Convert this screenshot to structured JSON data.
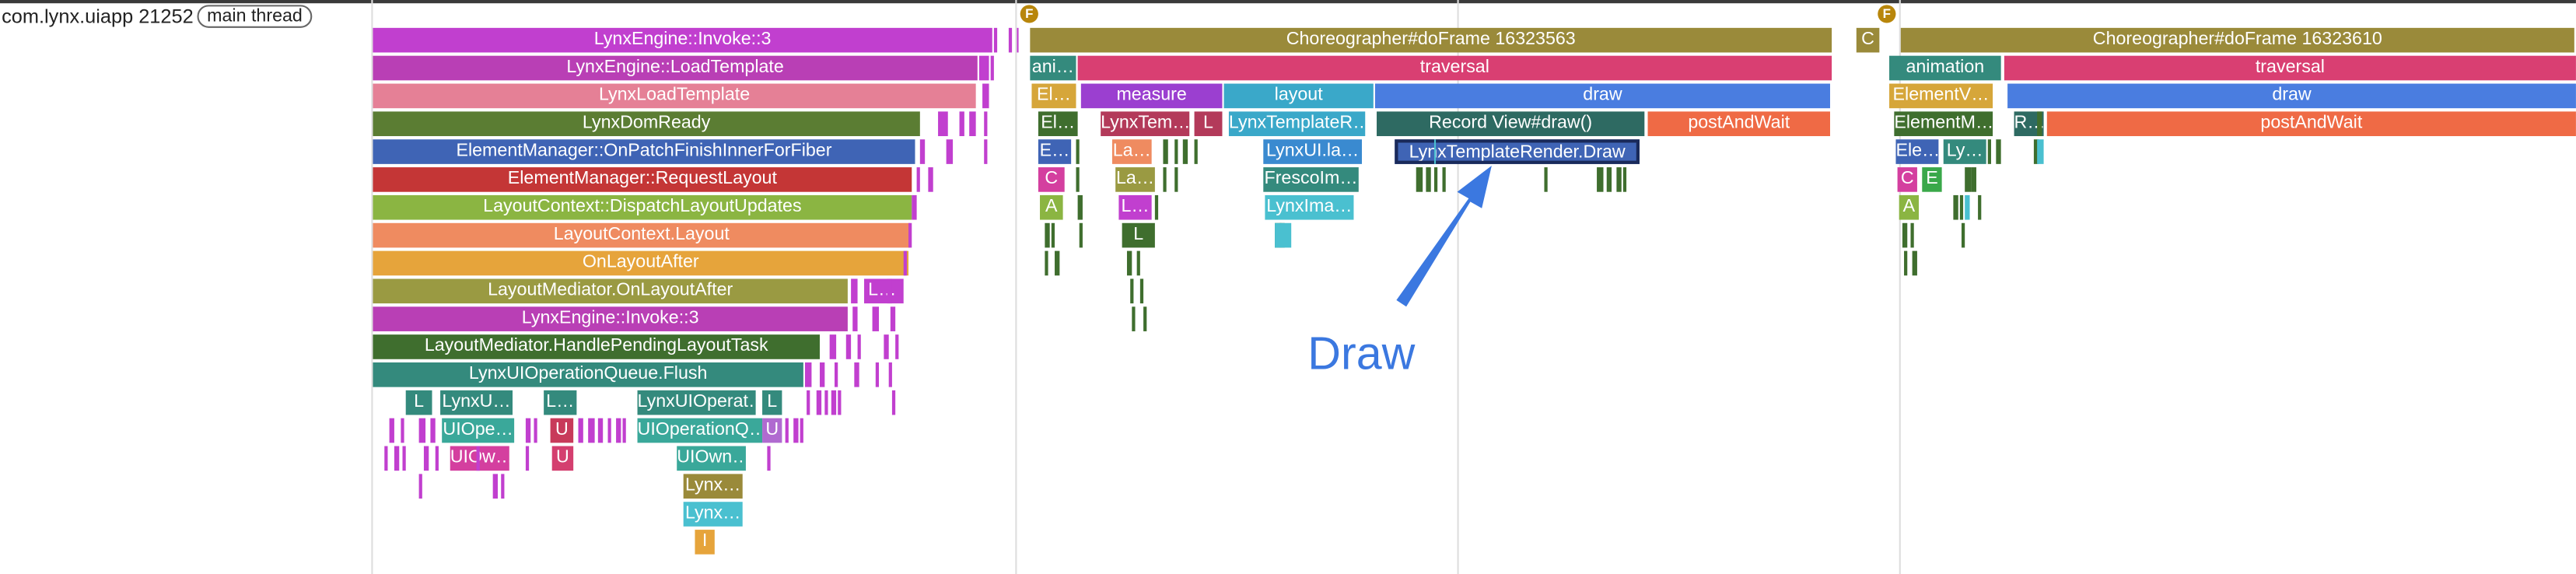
{
  "track": {
    "process_label": "com.lynx.uiapp 21252",
    "thread_label": "main thread"
  },
  "flags": [
    "F",
    "F"
  ],
  "annotation": {
    "text": "Draw",
    "color": "#3b78e0"
  },
  "slices": [
    {
      "t": "LynxEngine::Invoke::3",
      "c": "#c13fcf"
    },
    {
      "t": "LynxEngine::LoadTemplate",
      "c": "#b93fb5"
    },
    {
      "t": "LynxLoadTemplate",
      "c": "#e58096"
    },
    {
      "t": "LynxDomReady",
      "c": "#5b7d33"
    },
    {
      "t": "ElementManager::OnPatchFinishInnerForFiber",
      "c": "#3f64b5"
    },
    {
      "t": "ElementManager::RequestLayout",
      "c": "#c43636"
    },
    {
      "t": "LayoutContext::DispatchLayoutUpdates",
      "c": "#8bb542"
    },
    {
      "t": "LayoutContext.Layout",
      "c": "#ef8b60"
    },
    {
      "t": "OnLayoutAfter",
      "c": "#e6a43b"
    },
    {
      "t": "LayoutMediator.OnLayoutAfter",
      "c": "#9a9a42"
    },
    {
      "t": "LynxEngine::Invoke::3",
      "c": "#b93fb5"
    },
    {
      "t": "LayoutMediator.HandlePendingLayoutTask",
      "c": "#3f6e2e"
    },
    {
      "t": "LynxUIOperationQueue.Flush",
      "c": "#348a7d"
    },
    {
      "t": "L",
      "c": "#348a7d"
    },
    {
      "t": "LynxU…",
      "c": "#348a7d"
    },
    {
      "t": "L…",
      "c": "#348a7d"
    },
    {
      "t": "LynxUIOperat…",
      "c": "#348a7d"
    },
    {
      "t": "L",
      "c": "#348a7d"
    },
    {
      "t": "UIOpe…",
      "c": "#3aa89a"
    },
    {
      "t": "U",
      "c": "#c83a5a"
    },
    {
      "t": "UIOperationQ…",
      "c": "#3aa89a"
    },
    {
      "t": "U",
      "c": "#b06ad0"
    },
    {
      "t": "UIOw…",
      "c": "#d43f9f"
    },
    {
      "t": "U",
      "c": "#d43f6f"
    },
    {
      "t": "UIOwn…",
      "c": "#3aa89a"
    },
    {
      "t": "Lynx…",
      "c": "#9a8a3a"
    },
    {
      "t": "Lynx…",
      "c": "#4ac0d0"
    },
    {
      "t": "I",
      "c": "#e6a43b"
    },
    {
      "t": "L…",
      "c": "#c13fcf"
    },
    {
      "t": "Choreographer#doFrame 16323563",
      "c": "#9a8a3a"
    },
    {
      "t": "ani…",
      "c": "#348a7d"
    },
    {
      "t": "traversal",
      "c": "#d93f72"
    },
    {
      "t": "El…",
      "c": "#d6a63a"
    },
    {
      "t": "measure",
      "c": "#9b3fd0"
    },
    {
      "t": "layout",
      "c": "#3aa8c9"
    },
    {
      "t": "draw",
      "c": "#4a7de0"
    },
    {
      "t": "El…",
      "c": "#3f6e2e"
    },
    {
      "t": "LynxTem…",
      "c": "#b33a5a"
    },
    {
      "t": "L",
      "c": "#b33a5a"
    },
    {
      "t": "LynxTemplateR…",
      "c": "#3aa8c9"
    },
    {
      "t": "Record View#draw()",
      "c": "#2e6a62"
    },
    {
      "t": "postAndWait",
      "c": "#ef6a45"
    },
    {
      "t": "E…",
      "c": "#3f64b5"
    },
    {
      "t": "La…",
      "c": "#ef8b60"
    },
    {
      "t": "LynxUI.la…",
      "c": "#3a8ad0"
    },
    {
      "t": "LynxTemplateRender.Draw",
      "c": "#3f64b5"
    },
    {
      "t": "C",
      "c": "#d43f9f"
    },
    {
      "t": "La…",
      "c": "#9a9a42"
    },
    {
      "t": "FrescoIm…",
      "c": "#348a7d"
    },
    {
      "t": "A",
      "c": "#8bb542"
    },
    {
      "t": "L…",
      "c": "#c13fcf"
    },
    {
      "t": "LynxIma…",
      "c": "#4ac0d0"
    },
    {
      "t": "L",
      "c": "#3f6e2e"
    },
    {
      "t": "C",
      "c": "#9a8a3a"
    },
    {
      "t": "Choreographer#doFrame 16323610",
      "c": "#9a8a3a"
    },
    {
      "t": "animation",
      "c": "#348a7d"
    },
    {
      "t": "traversal",
      "c": "#d93f72"
    },
    {
      "t": "ElementV…",
      "c": "#d6a63a"
    },
    {
      "t": "draw",
      "c": "#4a7de0"
    },
    {
      "t": "ElementM…",
      "c": "#3f6e2e"
    },
    {
      "t": "R…",
      "c": "#2e6a62"
    },
    {
      "t": "postAndWait",
      "c": "#ef6a45"
    },
    {
      "t": "Ele…",
      "c": "#3f64b5"
    },
    {
      "t": "Ly…",
      "c": "#348a7d"
    },
    {
      "t": "C",
      "c": "#d43f9f"
    },
    {
      "t": "E",
      "c": "#3aa84a"
    },
    {
      "t": "A",
      "c": "#8bb542"
    }
  ]
}
